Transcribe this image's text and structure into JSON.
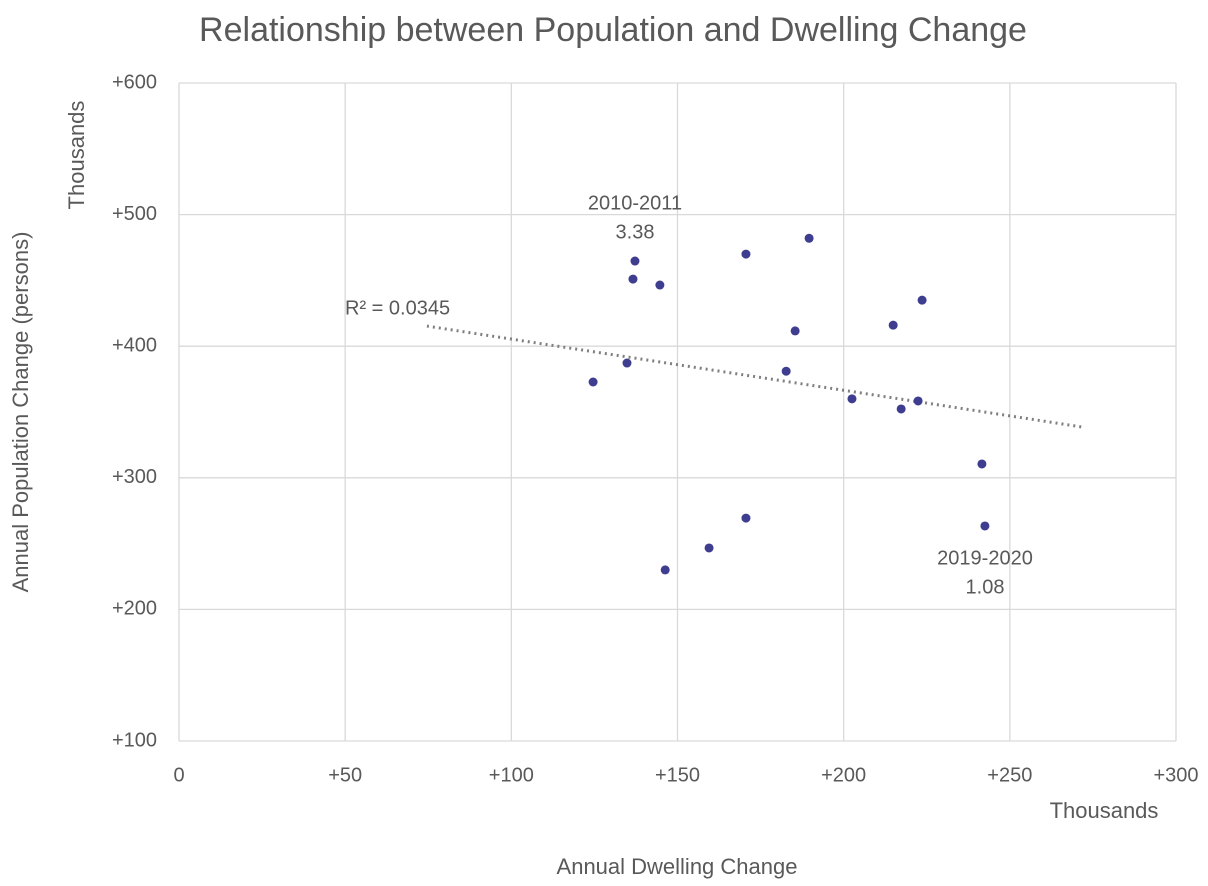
{
  "chart_data": {
    "type": "scatter",
    "title": "Relationship between Population and Dwelling Change",
    "x_label": "Annual Dwelling Change",
    "x_unit": "Thousands",
    "y_label": "Annual Population Change (persons)",
    "y_unit": "Thousands",
    "xlim": [
      0,
      300
    ],
    "xticks": [
      0,
      {
        "value": 50,
        "label": "+50"
      },
      {
        "value": 100,
        "label": "+100"
      },
      {
        "value": 150,
        "label": "+150"
      },
      {
        "value": 200,
        "label": "+200"
      },
      {
        "value": 250,
        "label": "+250"
      },
      {
        "value": 300,
        "label": "+300"
      }
    ],
    "ylim": [
      100,
      600
    ],
    "yticks": [
      {
        "value": 100,
        "label": "+100"
      },
      {
        "value": 200,
        "label": "+200"
      },
      {
        "value": 300,
        "label": "+300"
      },
      {
        "value": 400,
        "label": "+400"
      },
      {
        "value": 500,
        "label": "+500"
      },
      {
        "value": 600,
        "label": "+600"
      }
    ],
    "grid": true,
    "series": [
      {
        "color": "#3f3d8f",
        "x": [
          137.2,
          136.6,
          144.7,
          170.6,
          189.6,
          223.6,
          214.9,
          185.4,
          134.8,
          124.6,
          182.7,
          202.5,
          222.4,
          217.3,
          241.6,
          242.5,
          170.6,
          159.5,
          146.3
        ],
        "values": [
          464.7,
          451,
          446.5,
          470,
          482,
          435,
          416,
          411.6,
          387.2,
          372.8,
          381,
          360,
          358.4,
          352.3,
          310.5,
          263.4,
          269.4,
          246.7,
          230
        ]
      }
    ],
    "trendline": {
      "label": "R² = 0.0345",
      "color": "#7f7f7f",
      "x": [
        74.6,
        271.7
      ],
      "values": [
        415.3,
        338.6
      ]
    },
    "annotations": [
      {
        "text": [
          "2010-2011",
          "3.38"
        ]
      },
      {
        "text": [
          "2019-2020",
          "1.08"
        ]
      }
    ]
  }
}
